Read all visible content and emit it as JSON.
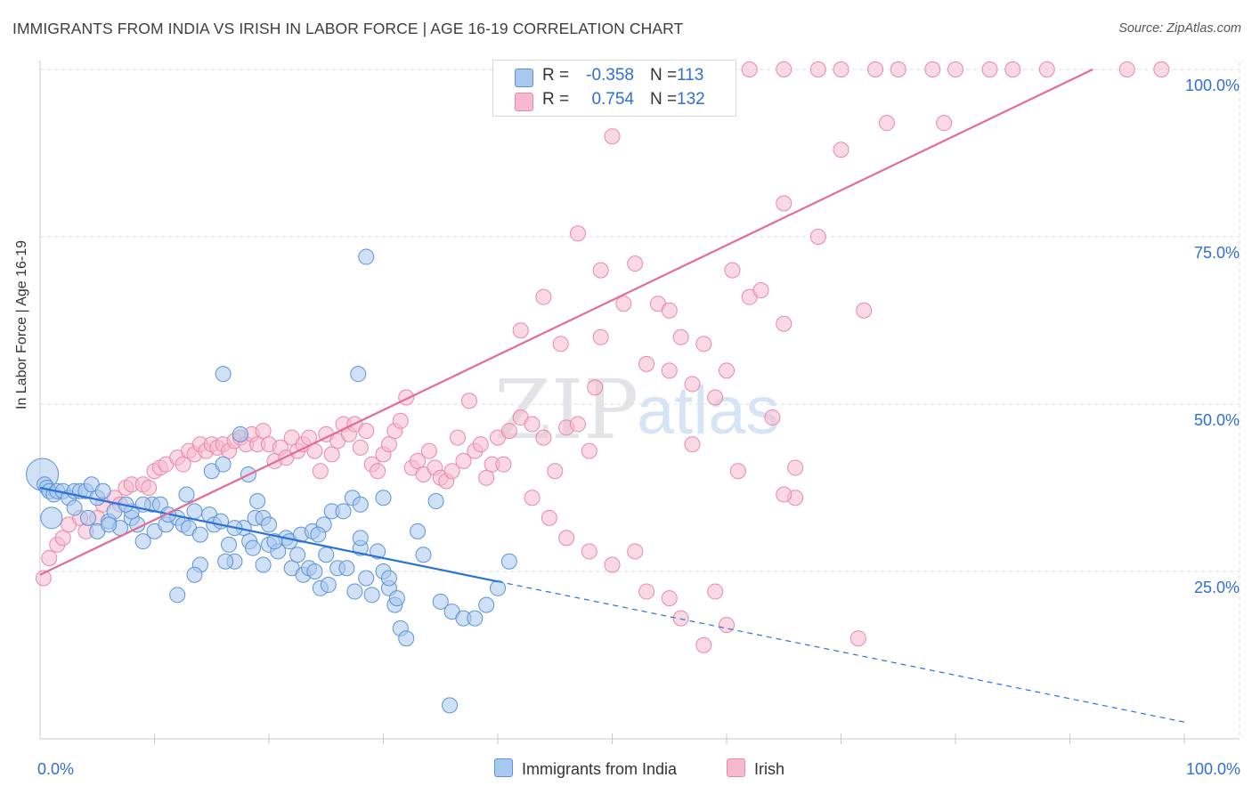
{
  "header": {
    "title": "IMMIGRANTS FROM INDIA VS IRISH IN LABOR FORCE | AGE 16-19 CORRELATION CHART",
    "source": "Source: ZipAtlas.com"
  },
  "legend": {
    "india": {
      "r_label": "R =",
      "r_value": "-0.358",
      "n_label": "N =",
      "n_value": "113"
    },
    "irish": {
      "r_label": "R =",
      "r_value": "0.754",
      "n_label": "N =",
      "n_value": "132"
    }
  },
  "colors": {
    "india_fill": "#a9c8ef",
    "india_stroke": "#5b93d8",
    "india_line": "#2a72d5",
    "irish_fill": "#f6b9cd",
    "irish_stroke": "#e889a9",
    "irish_line": "#e36b95",
    "axis_value": "#2e6fd0",
    "grid": "#dcdcdc"
  },
  "chart_data": {
    "type": "scatter",
    "title": "IMMIGRANTS FROM INDIA VS IRISH IN LABOR FORCE | AGE 16-19 CORRELATION CHART",
    "xlabel": "",
    "ylabel": "In Labor Force | Age 16-19",
    "xlim": [
      0,
      100
    ],
    "ylim": [
      0,
      100
    ],
    "x_tick_labels": [
      "0.0%",
      "100.0%"
    ],
    "y_tick_values": [
      25,
      50,
      75,
      100
    ],
    "y_tick_labels": [
      "25.0%",
      "50.0%",
      "75.0%",
      "100.0%"
    ],
    "grid": true,
    "watermark": {
      "zip": "ZIP",
      "atlas": "atlas"
    },
    "series": [
      {
        "name": "Immigrants from India",
        "trend": {
          "x0": 0,
          "y0": 37.5,
          "x1": 40,
          "y1": 23.5,
          "dashed_to_x": 100,
          "dashed_to_y": 2.5
        },
        "points": [
          [
            0.2,
            39.5
          ],
          [
            0.4,
            38
          ],
          [
            0.6,
            37.5
          ],
          [
            0.8,
            37
          ],
          [
            1,
            33
          ],
          [
            1.2,
            36.5
          ],
          [
            1.5,
            37
          ],
          [
            2,
            37
          ],
          [
            2.5,
            36
          ],
          [
            3,
            37
          ],
          [
            3.5,
            37
          ],
          [
            4,
            37
          ],
          [
            4.5,
            38
          ],
          [
            5,
            36
          ],
          [
            5.5,
            37
          ],
          [
            3,
            34.5
          ],
          [
            4.2,
            33
          ],
          [
            5,
            31
          ],
          [
            6,
            32.5
          ],
          [
            6.5,
            34
          ],
          [
            7,
            31.5
          ],
          [
            8,
            33
          ],
          [
            8.5,
            32
          ],
          [
            9,
            29.5
          ],
          [
            9.8,
            35
          ],
          [
            10,
            31
          ],
          [
            11,
            32
          ],
          [
            12,
            33
          ],
          [
            12.5,
            32
          ],
          [
            13,
            31.5
          ],
          [
            14,
            30.5
          ],
          [
            14.8,
            33.5
          ],
          [
            15.2,
            32
          ],
          [
            15.8,
            32.5
          ],
          [
            16.5,
            29
          ],
          [
            17,
            26.5
          ],
          [
            17.8,
            31.5
          ],
          [
            18.3,
            29.5
          ],
          [
            18.8,
            33
          ],
          [
            19.5,
            26
          ],
          [
            20,
            29
          ],
          [
            20.8,
            28
          ],
          [
            21.5,
            30
          ],
          [
            22,
            25.5
          ],
          [
            22.5,
            27.5
          ],
          [
            23,
            24.5
          ],
          [
            23.5,
            25.5
          ],
          [
            24,
            25
          ],
          [
            24.5,
            22.5
          ],
          [
            25,
            27.5
          ],
          [
            26,
            25.5
          ],
          [
            26.8,
            25.5
          ],
          [
            27.5,
            22
          ],
          [
            28.5,
            24
          ],
          [
            30,
            25
          ],
          [
            30.5,
            22.5
          ],
          [
            31,
            20
          ],
          [
            31.5,
            16.5
          ],
          [
            32,
            15
          ],
          [
            29,
            21.5
          ],
          [
            28,
            28.5
          ],
          [
            30.5,
            24
          ],
          [
            33.5,
            27.5
          ],
          [
            35,
            20.5
          ],
          [
            36,
            19
          ],
          [
            37,
            18
          ],
          [
            38,
            18
          ],
          [
            39,
            20
          ],
          [
            40,
            22.5
          ],
          [
            41,
            26.5
          ],
          [
            8,
            34
          ],
          [
            9,
            35
          ],
          [
            10.5,
            35
          ],
          [
            11.2,
            33.5
          ],
          [
            12.8,
            36.5
          ],
          [
            13.5,
            34
          ],
          [
            15,
            40
          ],
          [
            16,
            41
          ],
          [
            17.5,
            45.5
          ],
          [
            18.2,
            39.5
          ],
          [
            19,
            35.5
          ],
          [
            20.5,
            29.5
          ],
          [
            21.8,
            29.5
          ],
          [
            22.8,
            30.5
          ],
          [
            23.8,
            31
          ],
          [
            24.8,
            32
          ],
          [
            25.5,
            34
          ],
          [
            26.5,
            34
          ],
          [
            27.3,
            36
          ],
          [
            28,
            30
          ],
          [
            29.5,
            28
          ],
          [
            31.2,
            21
          ],
          [
            33,
            31
          ],
          [
            34.6,
            35.5
          ],
          [
            16,
            54.5
          ],
          [
            27.8,
            54.5
          ],
          [
            28.5,
            72
          ],
          [
            35.8,
            5
          ],
          [
            28,
            35
          ],
          [
            12,
            21.5
          ],
          [
            6,
            32
          ],
          [
            7.5,
            35
          ],
          [
            19.5,
            33
          ],
          [
            24.3,
            30.5
          ],
          [
            17,
            31.5
          ],
          [
            14,
            26
          ],
          [
            25.2,
            23
          ],
          [
            18.6,
            28.5
          ],
          [
            16.2,
            26.5
          ],
          [
            20,
            32
          ],
          [
            13.5,
            24.5
          ],
          [
            30,
            36
          ]
        ],
        "point_sizes": {
          "0.2,39.5": "large",
          "1,33": "medium"
        }
      },
      {
        "name": "Irish",
        "trend": {
          "x0": 0,
          "y0": 24.5,
          "x1": 92,
          "y1": 100
        },
        "points": [
          [
            0.3,
            24
          ],
          [
            0.8,
            27
          ],
          [
            1.5,
            29
          ],
          [
            2,
            30
          ],
          [
            2.5,
            32
          ],
          [
            3.5,
            33
          ],
          [
            4,
            31
          ],
          [
            5,
            33
          ],
          [
            5.5,
            35
          ],
          [
            6.5,
            36
          ],
          [
            7,
            35
          ],
          [
            7.5,
            37.5
          ],
          [
            8,
            38
          ],
          [
            9,
            38
          ],
          [
            9.5,
            37.5
          ],
          [
            10,
            40
          ],
          [
            10.5,
            40.5
          ],
          [
            11,
            41
          ],
          [
            12,
            42
          ],
          [
            12.5,
            41
          ],
          [
            13,
            43
          ],
          [
            13.5,
            42.5
          ],
          [
            14,
            44
          ],
          [
            14.5,
            43
          ],
          [
            15,
            44
          ],
          [
            15.5,
            43.5
          ],
          [
            16,
            44
          ],
          [
            16.5,
            43
          ],
          [
            17,
            44.5
          ],
          [
            17.5,
            45
          ],
          [
            18,
            44
          ],
          [
            18.5,
            45.5
          ],
          [
            19,
            44
          ],
          [
            19.5,
            46
          ],
          [
            20,
            44
          ],
          [
            20.5,
            41.5
          ],
          [
            21,
            43.5
          ],
          [
            21.5,
            42
          ],
          [
            22,
            45
          ],
          [
            22.5,
            43
          ],
          [
            23,
            44
          ],
          [
            23.5,
            45
          ],
          [
            24,
            43
          ],
          [
            24.5,
            40
          ],
          [
            25,
            45.5
          ],
          [
            25.5,
            42.5
          ],
          [
            26,
            44.5
          ],
          [
            26.5,
            47
          ],
          [
            27,
            45.5
          ],
          [
            27.5,
            47
          ],
          [
            28,
            43.5
          ],
          [
            28.5,
            46
          ],
          [
            29,
            41
          ],
          [
            29.5,
            40
          ],
          [
            30,
            42.5
          ],
          [
            30.5,
            44
          ],
          [
            31,
            46
          ],
          [
            31.5,
            47.5
          ],
          [
            32,
            51
          ],
          [
            32.5,
            40.5
          ],
          [
            33,
            41.5
          ],
          [
            33.5,
            39.5
          ],
          [
            34,
            43
          ],
          [
            34.5,
            40.5
          ],
          [
            35,
            39
          ],
          [
            35.5,
            38.5
          ],
          [
            36,
            40
          ],
          [
            36.5,
            45
          ],
          [
            37,
            41.5
          ],
          [
            37.5,
            50.5
          ],
          [
            38,
            43
          ],
          [
            38.5,
            44
          ],
          [
            39,
            39
          ],
          [
            39.5,
            41
          ],
          [
            40,
            45
          ],
          [
            40.5,
            41
          ],
          [
            41,
            46
          ],
          [
            42,
            48
          ],
          [
            43,
            47
          ],
          [
            44,
            45
          ],
          [
            45,
            40
          ],
          [
            46,
            46.5
          ],
          [
            47,
            47
          ],
          [
            48,
            43
          ],
          [
            48.5,
            52.5
          ],
          [
            49,
            60
          ],
          [
            51,
            65
          ],
          [
            53,
            56
          ],
          [
            54,
            65
          ],
          [
            55,
            55
          ],
          [
            56,
            60
          ],
          [
            57,
            53
          ],
          [
            58,
            59
          ],
          [
            59,
            51
          ],
          [
            60,
            55
          ],
          [
            62,
            66
          ],
          [
            63,
            67
          ],
          [
            64,
            48
          ],
          [
            65,
            62
          ],
          [
            66,
            36
          ],
          [
            42,
            61
          ],
          [
            44,
            66
          ],
          [
            45.5,
            59
          ],
          [
            47,
            75.5
          ],
          [
            49,
            70
          ],
          [
            50,
            90
          ],
          [
            52,
            71
          ],
          [
            53,
            22
          ],
          [
            55,
            21
          ],
          [
            56,
            18
          ],
          [
            58,
            14
          ],
          [
            59,
            22
          ],
          [
            60,
            17
          ],
          [
            43,
            36
          ],
          [
            44.5,
            33
          ],
          [
            46,
            30
          ],
          [
            48,
            28
          ],
          [
            50,
            26
          ],
          [
            52,
            28
          ],
          [
            57,
            44
          ],
          [
            61,
            40
          ],
          [
            65,
            80
          ],
          [
            68,
            75
          ],
          [
            70,
            88
          ],
          [
            74,
            92
          ],
          [
            45,
            100
          ],
          [
            48,
            100
          ],
          [
            50,
            100
          ],
          [
            52,
            100
          ],
          [
            56,
            100
          ],
          [
            60,
            100
          ],
          [
            62,
            100
          ],
          [
            65,
            100
          ],
          [
            68,
            100
          ],
          [
            70,
            100
          ],
          [
            73,
            100
          ],
          [
            75,
            100
          ],
          [
            78,
            100
          ],
          [
            80,
            100
          ],
          [
            83,
            100
          ],
          [
            85,
            100
          ],
          [
            88,
            100
          ],
          [
            95,
            100
          ],
          [
            98,
            100
          ],
          [
            60.5,
            70
          ],
          [
            66,
            40.5
          ],
          [
            71.5,
            15
          ],
          [
            65,
            36.5
          ],
          [
            55,
            64
          ],
          [
            79,
            92
          ],
          [
            72,
            64
          ]
        ]
      }
    ]
  },
  "bottom_legend": {
    "india_label": "Immigrants from India",
    "irish_label": "Irish"
  }
}
